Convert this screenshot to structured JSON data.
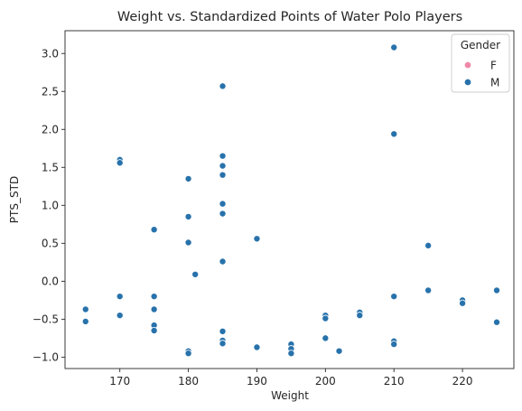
{
  "chart_data": {
    "type": "scatter",
    "title": "Weight vs. Standardized Points of Water Polo Players",
    "xlabel": "Weight",
    "ylabel": "PTS_STD",
    "xlim": [
      162,
      227.5
    ],
    "ylim": [
      -1.15,
      3.3
    ],
    "xticks": [
      170,
      180,
      190,
      200,
      210,
      220
    ],
    "yticks": [
      -1.0,
      -0.5,
      0.0,
      0.5,
      1.0,
      1.5,
      2.0,
      2.5,
      3.0
    ],
    "ytick_labels": [
      "−1.0",
      "−0.5",
      "0.0",
      "0.5",
      "1.0",
      "1.5",
      "2.0",
      "2.5",
      "3.0"
    ],
    "grid": false,
    "legend": {
      "title": "Gender",
      "placement": "top-right",
      "entries": [
        {
          "label": "F",
          "color": "#ee88a6"
        },
        {
          "label": "M",
          "color": "#2872ab"
        }
      ]
    },
    "series": [
      {
        "name": "F",
        "color": "#ee88a6",
        "points": []
      },
      {
        "name": "M",
        "color": "#2872ab",
        "points": [
          [
            165,
            -0.37
          ],
          [
            165,
            -0.53
          ],
          [
            170,
            1.6
          ],
          [
            170,
            1.56
          ],
          [
            170,
            -0.2
          ],
          [
            170,
            -0.45
          ],
          [
            175,
            0.68
          ],
          [
            175,
            -0.2
          ],
          [
            175,
            -0.37
          ],
          [
            175,
            -0.58
          ],
          [
            175,
            -0.65
          ],
          [
            180,
            1.35
          ],
          [
            180,
            0.85
          ],
          [
            180,
            0.51
          ],
          [
            180,
            -0.92
          ],
          [
            180,
            -0.95
          ],
          [
            181,
            0.09
          ],
          [
            185,
            2.57
          ],
          [
            185,
            1.65
          ],
          [
            185,
            1.52
          ],
          [
            185,
            1.4
          ],
          [
            185,
            1.02
          ],
          [
            185,
            0.89
          ],
          [
            185,
            0.26
          ],
          [
            185,
            -0.66
          ],
          [
            185,
            -0.78
          ],
          [
            185,
            -0.82
          ],
          [
            190,
            0.56
          ],
          [
            190,
            -0.87
          ],
          [
            195,
            -0.83
          ],
          [
            195,
            -0.89
          ],
          [
            195,
            -0.95
          ],
          [
            200,
            -0.45
          ],
          [
            200,
            -0.49
          ],
          [
            200,
            -0.75
          ],
          [
            202,
            -0.92
          ],
          [
            205,
            -0.41
          ],
          [
            205,
            -0.45
          ],
          [
            210,
            3.08
          ],
          [
            210,
            1.94
          ],
          [
            210,
            -0.2
          ],
          [
            210,
            -0.79
          ],
          [
            210,
            -0.83
          ],
          [
            215,
            0.47
          ],
          [
            215,
            -0.12
          ],
          [
            220,
            -0.25
          ],
          [
            220,
            -0.29
          ],
          [
            225,
            -0.12
          ],
          [
            225,
            -0.54
          ]
        ]
      }
    ]
  }
}
